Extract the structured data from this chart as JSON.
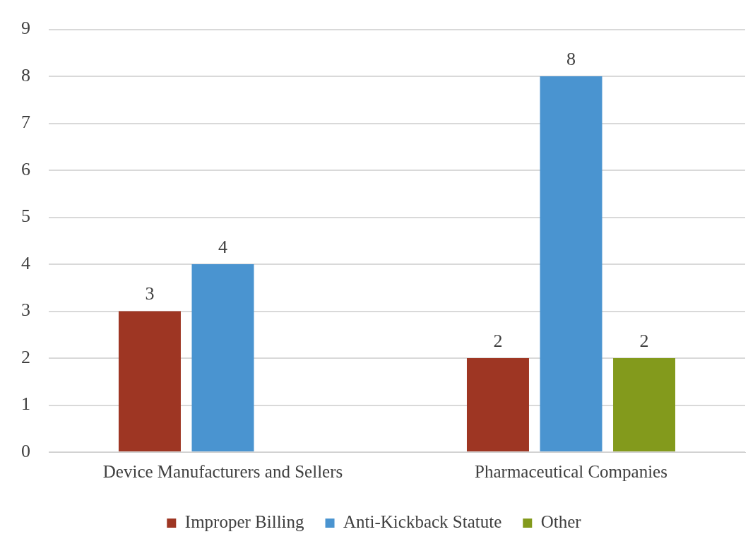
{
  "chart_data": {
    "type": "bar",
    "categories": [
      "Device Manufacturers and Sellers",
      "Pharmaceutical Companies"
    ],
    "series": [
      {
        "name": "Improper Billing",
        "color": "#9e3623",
        "values": [
          3,
          2
        ]
      },
      {
        "name": "Anti-Kickback Statute",
        "color": "#4a94d0",
        "values": [
          4,
          8
        ]
      },
      {
        "name": "Other",
        "color": "#839a1c",
        "values": [
          null,
          2
        ]
      }
    ],
    "ylim": [
      0,
      9
    ],
    "yticks": [
      0,
      1,
      2,
      3,
      4,
      5,
      6,
      7,
      8,
      9
    ],
    "grid": "y",
    "legend": "bottom",
    "data_labels": true
  }
}
